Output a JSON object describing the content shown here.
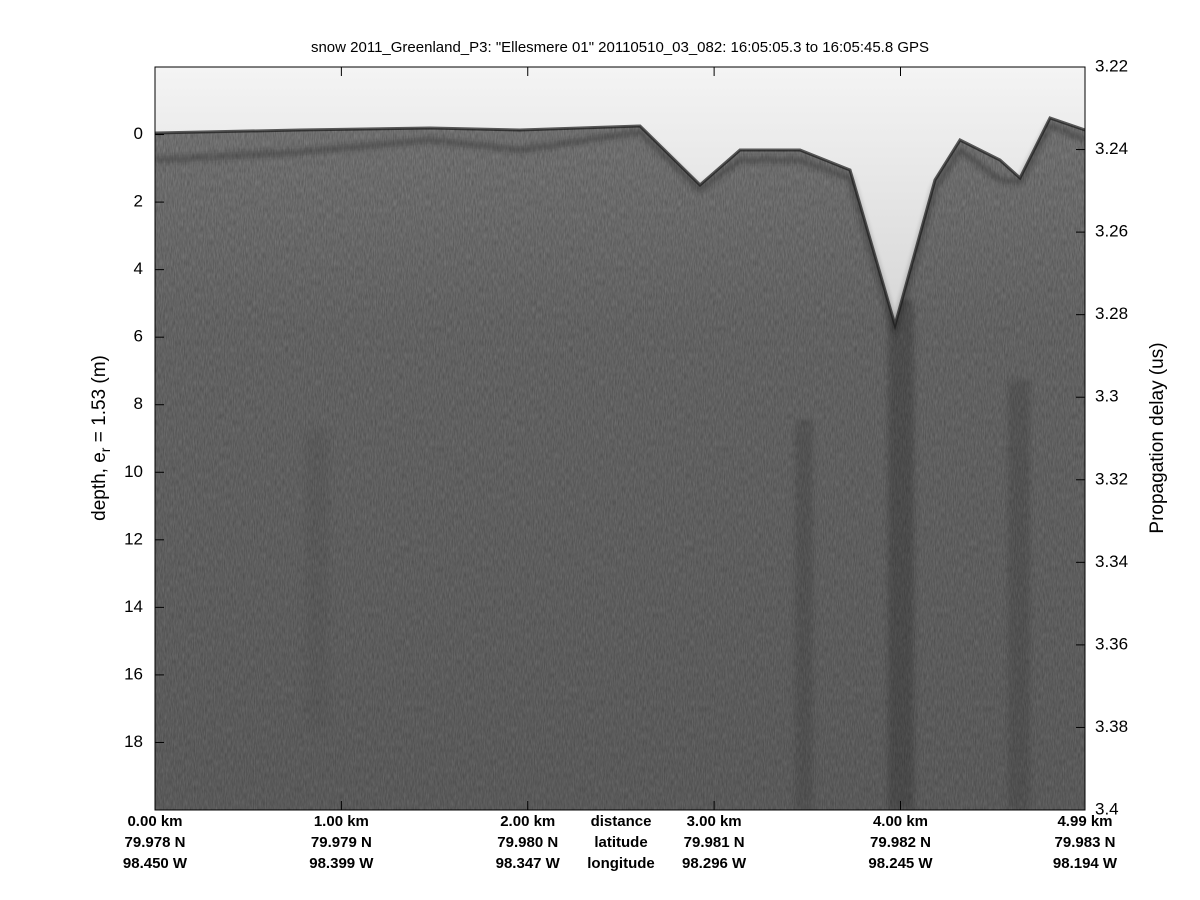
{
  "chart_data": {
    "type": "echogram",
    "title": "snow 2011_Greenland_P3: \"Ellesmere 01\"  20110510_03_082: 16:05:05.3 to 16:05:45.8 GPS",
    "ylabel": [
      "depth, e",
      "r",
      " = 1.53 (m)"
    ],
    "y2label": "Propagation delay (us)",
    "xlim": [
      0,
      4.99
    ],
    "xticks": [
      {
        "value": 0,
        "label": "0.00 km"
      },
      {
        "value": 1,
        "label": "1.00 km"
      },
      {
        "value": 2,
        "label": "2.00 km"
      },
      {
        "value": 3,
        "label": "3.00 km"
      },
      {
        "value": 4,
        "label": "4.00 km"
      },
      {
        "value": 4.99,
        "label": "4.99 km"
      }
    ],
    "latitudes": [
      "79.978 N",
      "79.979 N",
      "79.980 N",
      "79.981 N",
      "79.982 N",
      "79.983 N"
    ],
    "longitudes": [
      "98.450 W",
      "98.399 W",
      "98.347 W",
      "98.296 W",
      "98.245 W",
      "98.194 W"
    ],
    "row_labels": [
      "distance",
      "latitude",
      "longitude"
    ],
    "ylim": [
      -2,
      20
    ],
    "yticks": [
      0,
      2,
      4,
      6,
      8,
      10,
      12,
      14,
      16,
      18
    ],
    "y2lim": [
      3.22,
      3.4
    ],
    "y2ticks": [
      3.22,
      3.24,
      3.26,
      3.28,
      3.3,
      3.32,
      3.34,
      3.36,
      3.38,
      3.4
    ]
  }
}
